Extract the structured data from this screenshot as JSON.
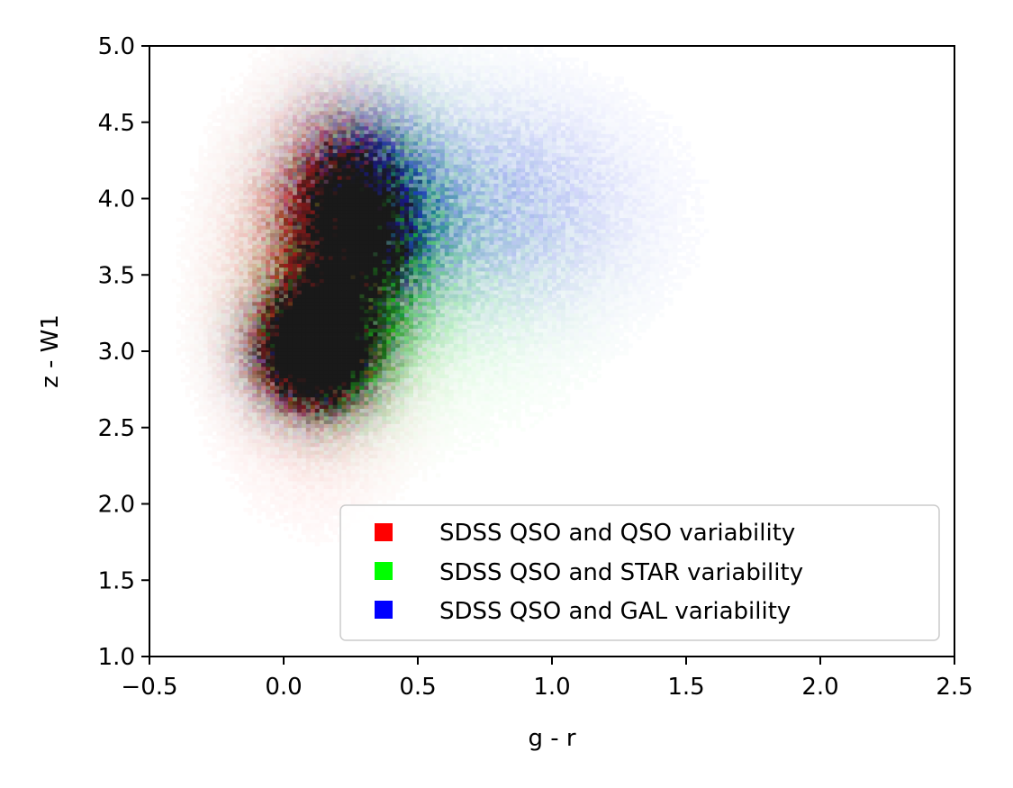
{
  "chart_data": {
    "type": "heatmap",
    "title": "",
    "xlabel": "g - r",
    "ylabel": "z - W1",
    "xlim": [
      -0.5,
      2.5
    ],
    "ylim": [
      1.0,
      5.0
    ],
    "x_ticks": [
      "−0.5",
      "0.0",
      "0.5",
      "1.0",
      "1.5",
      "2.0",
      "2.5"
    ],
    "x_tick_values": [
      -0.5,
      0.0,
      0.5,
      1.0,
      1.5,
      2.0,
      2.5
    ],
    "y_ticks": [
      "1.0",
      "1.5",
      "2.0",
      "2.5",
      "3.0",
      "3.5",
      "4.0",
      "4.5",
      "5.0"
    ],
    "y_tick_values": [
      1.0,
      1.5,
      2.0,
      2.5,
      3.0,
      3.5,
      4.0,
      4.5,
      5.0
    ],
    "grid": false,
    "legend_position": "bottom-right",
    "encoding": "RGB composite 2D density histogram; overlap of channels appears dark",
    "series": [
      {
        "name": "SDSS QSO and QSO variability",
        "color": "#ff0000",
        "components": [
          {
            "x": 0.1,
            "y": 3.0,
            "sx": 0.12,
            "sy": 0.22,
            "weight": 1.0
          },
          {
            "x": 0.2,
            "y": 3.8,
            "sx": 0.13,
            "sy": 0.4,
            "weight": 0.75
          },
          {
            "x": 0.12,
            "y": 3.4,
            "sx": 0.2,
            "sy": 0.65,
            "weight": 0.35
          }
        ]
      },
      {
        "name": "SDSS QSO and STAR variability",
        "color": "#00ff00",
        "components": [
          {
            "x": 0.15,
            "y": 3.05,
            "sx": 0.15,
            "sy": 0.28,
            "weight": 0.9
          },
          {
            "x": 0.3,
            "y": 3.75,
            "sx": 0.18,
            "sy": 0.45,
            "weight": 0.6
          },
          {
            "x": 0.55,
            "y": 3.6,
            "sx": 0.35,
            "sy": 0.6,
            "weight": 0.12
          }
        ]
      },
      {
        "name": "SDSS QSO and GAL variability",
        "color": "#0000ff",
        "components": [
          {
            "x": 0.12,
            "y": 3.0,
            "sx": 0.14,
            "sy": 0.25,
            "weight": 0.85
          },
          {
            "x": 0.3,
            "y": 3.9,
            "sx": 0.16,
            "sy": 0.4,
            "weight": 0.75
          },
          {
            "x": 0.75,
            "y": 3.95,
            "sx": 0.35,
            "sy": 0.45,
            "weight": 0.2
          }
        ]
      }
    ]
  }
}
